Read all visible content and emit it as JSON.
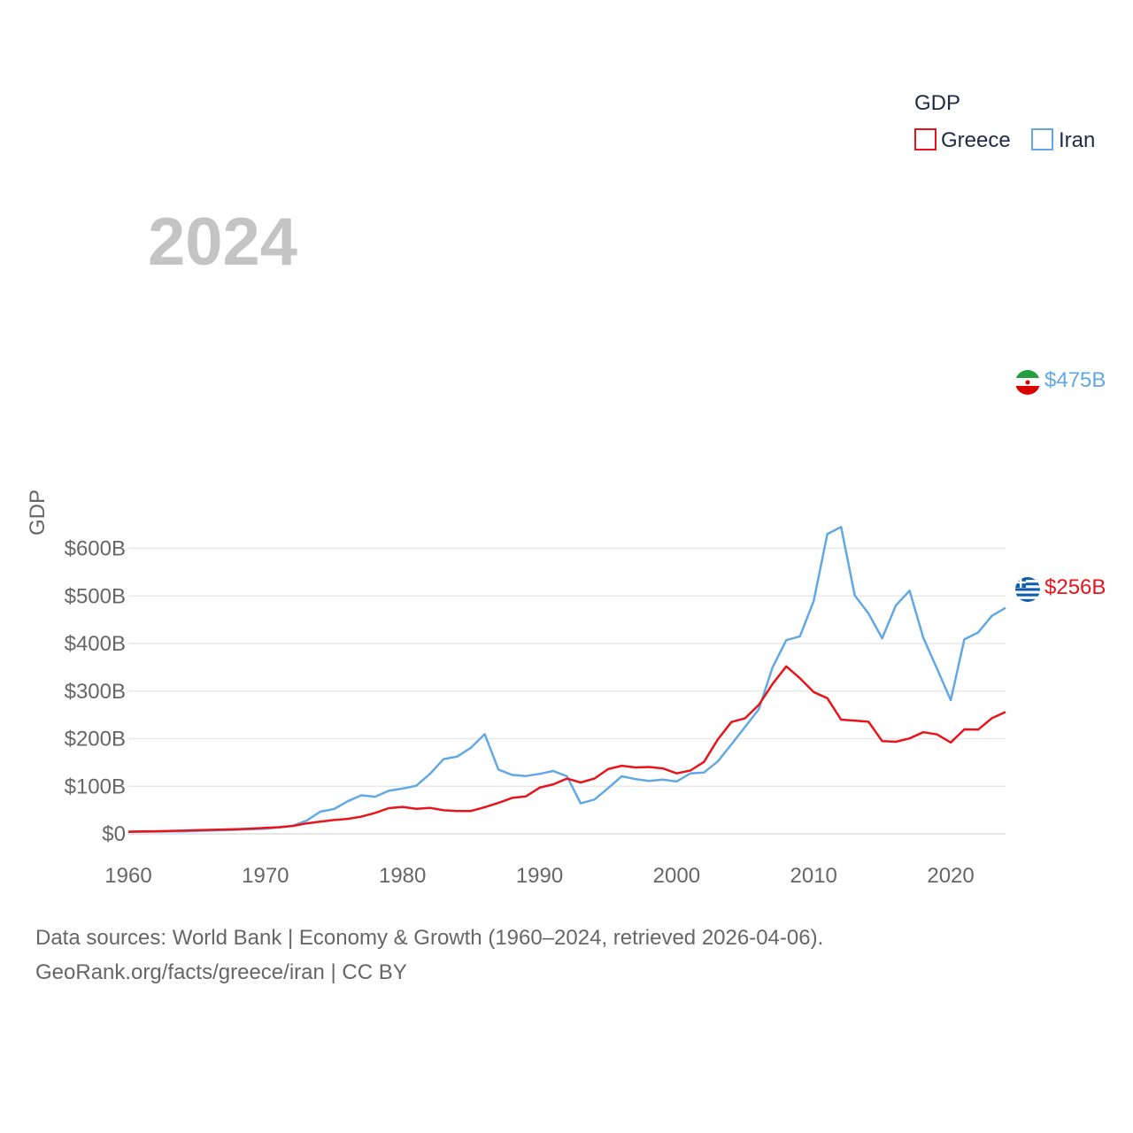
{
  "chart_data": {
    "type": "line",
    "title": "GDP",
    "ylabel": "GDP",
    "xlabel": "",
    "year_overlay": "2024",
    "xlim": [
      1960,
      2024
    ],
    "ylim": [
      0,
      650
    ],
    "y_unit": "billions USD",
    "x_ticks": [
      1960,
      1970,
      1980,
      1990,
      2000,
      2010,
      2020
    ],
    "x_tick_labels": [
      "1960",
      "1970",
      "1980",
      "1990",
      "2000",
      "2010",
      "2020"
    ],
    "y_ticks": [
      0,
      100,
      200,
      300,
      400,
      500,
      600
    ],
    "y_tick_labels": [
      "$0",
      "$100B",
      "$200B",
      "$300B",
      "$400B",
      "$500B",
      "$600B"
    ],
    "grid": true,
    "legend": {
      "title": "GDP",
      "position": "top-right"
    },
    "series": [
      {
        "name": "Greece",
        "color": "#e8141c",
        "flag": "greece-flag",
        "end_label": "$256B",
        "x": [
          1960,
          1961,
          1962,
          1963,
          1964,
          1965,
          1966,
          1967,
          1968,
          1969,
          1970,
          1971,
          1972,
          1973,
          1974,
          1975,
          1976,
          1977,
          1978,
          1979,
          1980,
          1981,
          1982,
          1983,
          1984,
          1985,
          1986,
          1987,
          1988,
          1989,
          1990,
          1991,
          1992,
          1993,
          1994,
          1995,
          1996,
          1997,
          1998,
          1999,
          2000,
          2001,
          2002,
          2003,
          2004,
          2005,
          2006,
          2007,
          2008,
          2009,
          2010,
          2011,
          2012,
          2013,
          2014,
          2015,
          2016,
          2017,
          2018,
          2019,
          2020,
          2021,
          2022,
          2023,
          2024
        ],
        "values": [
          4.5,
          5,
          5.4,
          6,
          6.7,
          7.6,
          8.4,
          9.1,
          9.8,
          11,
          12.5,
          14,
          16.5,
          22,
          25.5,
          29,
          31.5,
          36,
          44,
          54,
          56.5,
          52.5,
          54.5,
          49.5,
          48,
          48,
          56,
          65,
          75.5,
          78.5,
          97,
          104,
          116,
          108,
          116,
          136,
          143,
          139.5,
          140.5,
          137.5,
          127,
          133,
          151,
          198,
          235,
          243,
          271,
          315,
          352,
          327,
          298,
          285,
          240,
          238,
          235.5,
          195,
          193.5,
          200.5,
          213.5,
          209,
          192,
          219.5,
          219,
          243,
          256
        ]
      },
      {
        "name": "Iran",
        "color": "#62a8e5",
        "flag": "iran-flag",
        "end_label": "$475B",
        "x": [
          1960,
          1961,
          1962,
          1963,
          1964,
          1965,
          1966,
          1967,
          1968,
          1969,
          1970,
          1971,
          1972,
          1973,
          1974,
          1975,
          1976,
          1977,
          1978,
          1979,
          1980,
          1981,
          1982,
          1983,
          1984,
          1985,
          1986,
          1987,
          1988,
          1989,
          1990,
          1991,
          1992,
          1993,
          1994,
          1995,
          1996,
          1997,
          1998,
          1999,
          2000,
          2001,
          2002,
          2003,
          2004,
          2005,
          2006,
          2007,
          2008,
          2009,
          2010,
          2011,
          2012,
          2013,
          2014,
          2015,
          2016,
          2017,
          2018,
          2019,
          2020,
          2021,
          2022,
          2023,
          2024
        ],
        "values": [
          4.2,
          4.5,
          4.7,
          5,
          5.3,
          6,
          6.8,
          7.6,
          8.6,
          9.6,
          10.7,
          13.5,
          17,
          27.5,
          46.5,
          52,
          68.5,
          81,
          78,
          90.5,
          95,
          101,
          126,
          157,
          162.5,
          181,
          209.5,
          135,
          124,
          121.5,
          126,
          132,
          121,
          64,
          72,
          96,
          121,
          115,
          111,
          114,
          110,
          127,
          129,
          152,
          188,
          225,
          262,
          350,
          407,
          415,
          489,
          630,
          645,
          501,
          463,
          411,
          480,
          511,
          412,
          347,
          281,
          409,
          423,
          458,
          475
        ]
      }
    ]
  },
  "sources": {
    "line1": "Data sources: World Bank | Economy & Growth (1960–2024, retrieved 2026-04-06).",
    "line2": "GeoRank.org/facts/greece/iran | CC BY"
  }
}
